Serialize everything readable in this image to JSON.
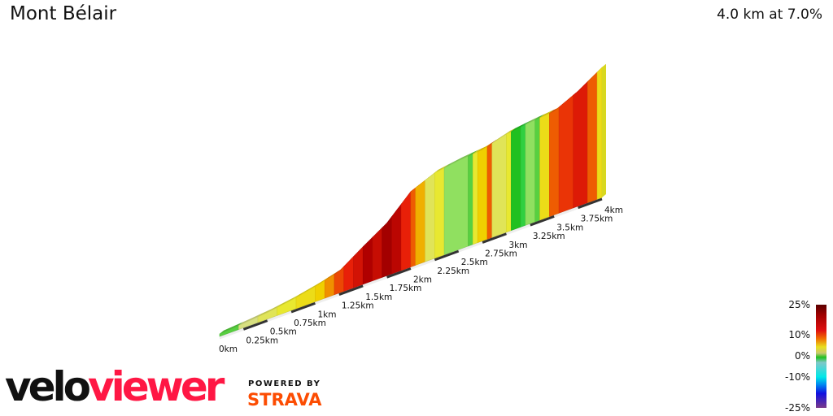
{
  "header": {
    "title": "Mont Bélair",
    "summary": "4.0 km at 7.0%"
  },
  "branding": {
    "logo_part1": "velo",
    "logo_part2": "viewer",
    "powered_by": "POWERED BY",
    "strava": "STRAVA"
  },
  "legend": {
    "labels": [
      "25%",
      "10%",
      "0%",
      "-10%",
      "-25%"
    ]
  },
  "chart_data": {
    "type": "area",
    "style": "3d gradient-colored elevation profile",
    "x_unit": "km",
    "xlim": [
      0,
      4
    ],
    "x_ticks": [
      {
        "value": 0,
        "label": "0km"
      },
      {
        "value": 0.25,
        "label": "0.25km"
      },
      {
        "value": 0.5,
        "label": "0.5km"
      },
      {
        "value": 0.75,
        "label": "0.75km"
      },
      {
        "value": 1,
        "label": "1km"
      },
      {
        "value": 1.25,
        "label": "1.25km"
      },
      {
        "value": 1.5,
        "label": "1.5km"
      },
      {
        "value": 1.75,
        "label": "1.75km"
      },
      {
        "value": 2,
        "label": "2km"
      },
      {
        "value": 2.25,
        "label": "2.25km"
      },
      {
        "value": 2.5,
        "label": "2.5km"
      },
      {
        "value": 2.75,
        "label": "2.75km"
      },
      {
        "value": 3,
        "label": "3km"
      },
      {
        "value": 3.25,
        "label": "3.25km"
      },
      {
        "value": 3.5,
        "label": "3.5km"
      },
      {
        "value": 3.75,
        "label": "3.75km"
      },
      {
        "value": 4,
        "label": "4km"
      }
    ],
    "elevation_gain_profile": {
      "km": [
        0,
        0.25,
        0.5,
        0.75,
        1,
        1.25,
        1.5,
        1.75,
        2,
        2.25,
        2.5,
        2.75,
        3,
        3.25,
        3.5,
        3.75,
        4
      ],
      "m": [
        0,
        4,
        9,
        17,
        28,
        42,
        77,
        110,
        160,
        182,
        190,
        195,
        210,
        217,
        222,
        247,
        280
      ]
    },
    "segments": [
      {
        "from": 0,
        "to": 0.2,
        "grade": 1
      },
      {
        "from": 0.2,
        "to": 0.4,
        "grade": 3
      },
      {
        "from": 0.4,
        "to": 0.6,
        "grade": 4
      },
      {
        "from": 0.6,
        "to": 0.8,
        "grade": 5
      },
      {
        "from": 0.8,
        "to": 1.0,
        "grade": 6
      },
      {
        "from": 1.0,
        "to": 1.1,
        "grade": 7
      },
      {
        "from": 1.1,
        "to": 1.2,
        "grade": 9
      },
      {
        "from": 1.2,
        "to": 1.3,
        "grade": 12
      },
      {
        "from": 1.3,
        "to": 1.4,
        "grade": 14
      },
      {
        "from": 1.4,
        "to": 1.5,
        "grade": 16
      },
      {
        "from": 1.5,
        "to": 1.6,
        "grade": 19
      },
      {
        "from": 1.6,
        "to": 1.7,
        "grade": 17
      },
      {
        "from": 1.7,
        "to": 1.8,
        "grade": 20
      },
      {
        "from": 1.8,
        "to": 1.9,
        "grade": 18
      },
      {
        "from": 1.9,
        "to": 2.0,
        "grade": 14
      },
      {
        "from": 2.0,
        "to": 2.05,
        "grade": 11
      },
      {
        "from": 2.05,
        "to": 2.15,
        "grade": 8
      },
      {
        "from": 2.15,
        "to": 2.25,
        "grade": 4
      },
      {
        "from": 2.25,
        "to": 2.35,
        "grade": 5
      },
      {
        "from": 2.35,
        "to": 2.6,
        "grade": 2
      },
      {
        "from": 2.6,
        "to": 2.65,
        "grade": 1
      },
      {
        "from": 2.65,
        "to": 2.7,
        "grade": 5
      },
      {
        "from": 2.7,
        "to": 2.8,
        "grade": 7
      },
      {
        "from": 2.8,
        "to": 2.85,
        "grade": 11
      },
      {
        "from": 2.85,
        "to": 3.0,
        "grade": 4
      },
      {
        "from": 3.0,
        "to": 3.05,
        "grade": 5
      },
      {
        "from": 3.05,
        "to": 3.15,
        "grade": 0
      },
      {
        "from": 3.15,
        "to": 3.2,
        "grade": -1
      },
      {
        "from": 3.2,
        "to": 3.3,
        "grade": 2
      },
      {
        "from": 3.3,
        "to": 3.35,
        "grade": 1
      },
      {
        "from": 3.35,
        "to": 3.45,
        "grade": 6
      },
      {
        "from": 3.45,
        "to": 3.55,
        "grade": 11
      },
      {
        "from": 3.55,
        "to": 3.7,
        "grade": 13
      },
      {
        "from": 3.7,
        "to": 3.85,
        "grade": 15
      },
      {
        "from": 3.85,
        "to": 3.95,
        "grade": 11
      },
      {
        "from": 3.95,
        "to": 4.0,
        "grade": 6
      }
    ],
    "color_scale": {
      "min": -25,
      "max": 25,
      "stops": [
        {
          "grade": -25,
          "color": "#7a3a8a"
        },
        {
          "grade": -15,
          "color": "#1010e0"
        },
        {
          "grade": -10,
          "color": "#00e0e0"
        },
        {
          "grade": -3,
          "color": "#80c8c8"
        },
        {
          "grade": -1,
          "color": "#30d040"
        },
        {
          "grade": 0,
          "color": "#20c020"
        },
        {
          "grade": 2,
          "color": "#90e060"
        },
        {
          "grade": 3,
          "color": "#d8e080"
        },
        {
          "grade": 5,
          "color": "#e8e830"
        },
        {
          "grade": 7,
          "color": "#f0d000"
        },
        {
          "grade": 10,
          "color": "#f07000"
        },
        {
          "grade": 14,
          "color": "#e82008"
        },
        {
          "grade": 19,
          "color": "#b00000"
        },
        {
          "grade": 25,
          "color": "#600000"
        }
      ]
    }
  }
}
